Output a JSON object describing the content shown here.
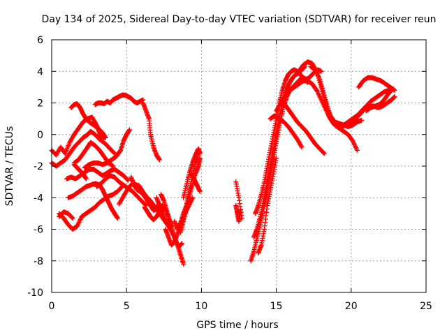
{
  "chart_data": {
    "type": "scatter",
    "title": "Day 134 of 2025, Sidereal Day-to-day VTEC variation (SDTVAR) for receiver reun",
    "xlabel": "GPS time / hours",
    "ylabel": "SDTVAR / TECUs",
    "xlim": [
      0,
      25
    ],
    "ylim": [
      -10,
      6
    ],
    "xticks": [
      0,
      5,
      10,
      15,
      20,
      25
    ],
    "yticks": [
      -10,
      -8,
      -6,
      -4,
      -2,
      0,
      2,
      4,
      6
    ],
    "grid": true,
    "marker": "plus",
    "color": "#ff0000",
    "series": [
      {
        "x": [
          0.0,
          0.3,
          0.6,
          0.9,
          1.2,
          1.5,
          1.8,
          2.1,
          2.4,
          2.7,
          3.0,
          3.2,
          3.4
        ],
        "y": [
          -1.0,
          -1.3,
          -0.8,
          -1.2,
          -0.5,
          0.0,
          0.4,
          0.8,
          1.0,
          1.1,
          0.6,
          0.1,
          -0.3
        ]
      },
      {
        "x": [
          1.3,
          1.5,
          1.7,
          1.9,
          2.1,
          2.3,
          2.5,
          2.8,
          3.1,
          3.4,
          3.6
        ],
        "y": [
          1.7,
          1.9,
          1.95,
          1.7,
          1.3,
          1.0,
          0.8,
          0.6,
          0.4,
          0.1,
          -0.2
        ]
      },
      {
        "x": [
          0.0,
          0.3,
          0.6,
          0.9,
          1.2,
          1.5,
          1.8,
          2.1,
          2.4,
          2.6,
          2.9,
          3.2,
          3.6,
          3.9,
          4.2
        ],
        "y": [
          -1.8,
          -2.0,
          -1.8,
          -1.6,
          -1.2,
          -0.8,
          -0.5,
          -0.2,
          0.0,
          0.2,
          0.0,
          -0.3,
          -0.6,
          -0.9,
          -1.2
        ]
      },
      {
        "x": [
          1.5,
          1.8,
          2.1,
          2.4,
          2.6,
          2.9,
          3.2,
          3.5,
          3.8,
          4.1
        ],
        "y": [
          -1.8,
          -1.6,
          -1.2,
          -0.8,
          -0.5,
          -0.7,
          -1.0,
          -1.4,
          -1.8,
          -2.0
        ]
      },
      {
        "x": [
          2.2,
          2.5,
          2.8,
          3.1,
          3.4,
          3.7,
          4.0,
          4.3,
          4.6,
          4.8,
          5.0,
          5.2
        ],
        "y": [
          -2.1,
          -1.9,
          -1.8,
          -1.8,
          -1.9,
          -1.8,
          -1.6,
          -1.4,
          -1.0,
          -0.4,
          0.0,
          0.3
        ]
      },
      {
        "x": [
          1.0,
          1.3,
          1.6,
          1.9,
          2.2,
          2.5,
          2.8,
          3.1,
          3.4,
          3.6,
          3.9,
          4.2,
          4.5,
          4.8,
          5.1
        ],
        "y": [
          -2.8,
          -2.7,
          -2.8,
          -2.6,
          -2.4,
          -2.2,
          -2.2,
          -2.4,
          -2.6,
          -2.5,
          -2.3,
          -2.2,
          -2.4,
          -2.6,
          -2.9
        ]
      },
      {
        "x": [
          1.5,
          1.7,
          1.9,
          2.1,
          2.3
        ],
        "y": [
          -1.9,
          -2.1,
          -2.3,
          -2.5,
          -2.8
        ]
      },
      {
        "x": [
          2.9,
          3.1,
          3.3,
          3.5,
          3.7,
          3.9,
          4.1,
          4.3,
          4.5,
          4.7,
          4.9,
          5.1,
          5.3,
          5.5,
          5.7,
          5.9,
          6.1
        ],
        "y": [
          1.9,
          2.0,
          2.0,
          1.95,
          2.1,
          2.0,
          2.2,
          2.3,
          2.4,
          2.5,
          2.5,
          2.4,
          2.3,
          2.1,
          2.0,
          2.1,
          2.2
        ]
      },
      {
        "x": [
          6.1,
          6.3,
          6.5,
          6.6,
          6.8,
          7.0,
          7.2
        ],
        "y": [
          2.0,
          1.5,
          1.0,
          0.0,
          -0.8,
          -1.3,
          -1.6
        ]
      },
      {
        "x": [
          0.5,
          0.8,
          1.1,
          1.4,
          1.7,
          2.0,
          2.3,
          2.6,
          2.9,
          3.2,
          3.5,
          3.8,
          4.1,
          4.4,
          4.7
        ],
        "y": [
          -5.0,
          -5.3,
          -5.7,
          -6.0,
          -5.8,
          -5.2,
          -5.0,
          -4.8,
          -4.6,
          -4.3,
          -4.1,
          -3.9,
          -3.8,
          -3.6,
          -3.3
        ]
      },
      {
        "x": [
          0.5,
          0.8,
          1.1,
          1.4
        ],
        "y": [
          -5.2,
          -4.9,
          -5.0,
          -5.3
        ]
      },
      {
        "x": [
          1.1,
          1.4,
          1.7,
          2.0,
          2.3,
          2.6,
          2.9,
          3.2,
          3.4,
          3.6,
          3.8,
          4.0,
          4.2,
          4.4
        ],
        "y": [
          -4.0,
          -3.9,
          -3.7,
          -3.5,
          -3.3,
          -3.2,
          -3.1,
          -3.2,
          -3.5,
          -3.9,
          -4.3,
          -4.7,
          -5.0,
          -5.3
        ]
      },
      {
        "x": [
          3.0,
          3.3,
          3.6,
          3.9,
          4.2,
          4.5,
          4.8,
          5.1,
          5.4,
          5.7,
          6.0,
          6.3
        ],
        "y": [
          -3.3,
          -3.1,
          -2.8,
          -2.6,
          -2.7,
          -3.0,
          -3.2,
          -3.4,
          -3.6,
          -3.9,
          -4.2,
          -4.5
        ]
      },
      {
        "x": [
          4.5,
          4.8,
          5.1,
          5.4,
          5.7,
          6.0,
          6.3,
          6.6,
          6.9,
          7.2,
          7.5,
          7.8
        ],
        "y": [
          -4.4,
          -3.9,
          -3.4,
          -3.1,
          -3.2,
          -3.5,
          -3.9,
          -4.2,
          -4.6,
          -5.0,
          -5.4,
          -5.8
        ]
      },
      {
        "x": [
          5.3,
          5.5,
          5.7,
          5.9,
          6.1,
          6.3,
          6.5,
          6.7,
          6.9
        ],
        "y": [
          -2.7,
          -3.2,
          -3.5,
          -3.6,
          -3.8,
          -4.0,
          -4.2,
          -4.4,
          -4.8
        ]
      },
      {
        "x": [
          5.8,
          6.0,
          6.2,
          6.4,
          6.6,
          6.8,
          7.0,
          7.2,
          7.4
        ],
        "y": [
          -3.2,
          -3.5,
          -3.9,
          -4.2,
          -4.5,
          -4.8,
          -4.6,
          -4.4,
          -4.8
        ]
      },
      {
        "x": [
          6.2,
          6.4,
          6.6,
          6.8,
          7.0,
          7.2,
          7.4,
          7.6,
          7.8,
          8.0
        ],
        "y": [
          -4.6,
          -4.9,
          -5.2,
          -5.4,
          -5.2,
          -4.9,
          -4.5,
          -4.7,
          -5.2,
          -5.8
        ]
      },
      {
        "x": [
          7.0,
          7.2,
          7.4,
          7.6,
          7.8,
          8.0,
          8.2,
          8.4,
          8.6,
          8.8
        ],
        "y": [
          -4.0,
          -4.5,
          -5.0,
          -5.5,
          -5.8,
          -6.1,
          -6.5,
          -7.0,
          -7.6,
          -8.2
        ]
      },
      {
        "x": [
          7.3,
          7.5,
          7.7,
          7.9,
          8.1,
          8.3,
          8.5,
          8.7
        ],
        "y": [
          -3.8,
          -4.2,
          -4.9,
          -5.6,
          -6.2,
          -6.8,
          -7.1,
          -6.9
        ]
      },
      {
        "x": [
          7.6,
          7.8,
          8.0,
          8.2,
          8.4,
          8.6,
          8.8,
          9.0,
          9.2,
          9.4
        ],
        "y": [
          -6.0,
          -6.5,
          -7.0,
          -6.8,
          -6.3,
          -5.8,
          -5.3,
          -4.8,
          -4.4,
          -4.0
        ]
      },
      {
        "x": [
          8.2,
          8.4,
          8.6,
          8.8,
          9.0,
          9.2,
          9.4,
          9.6,
          9.8,
          9.9
        ],
        "y": [
          -5.5,
          -6.0,
          -5.6,
          -5.0,
          -4.5,
          -3.8,
          -3.2,
          -2.5,
          -2.0,
          -1.5
        ]
      },
      {
        "x": [
          8.6,
          8.8,
          9.0,
          9.2,
          9.4,
          9.6,
          9.8
        ],
        "y": [
          -6.2,
          -5.5,
          -4.5,
          -3.5,
          -2.6,
          -1.8,
          -1.2
        ]
      },
      {
        "x": [
          8.8,
          9.0,
          9.2,
          9.4,
          9.6,
          9.8,
          9.9
        ],
        "y": [
          -4.0,
          -3.2,
          -2.4,
          -1.8,
          -1.3,
          -0.9,
          -1.2
        ]
      },
      {
        "x": [
          9.3,
          9.5,
          9.7,
          9.9
        ],
        "y": [
          -2.5,
          -2.8,
          -3.2,
          -3.6
        ]
      },
      {
        "x": [
          12.3,
          12.5,
          12.7
        ],
        "y": [
          -3.0,
          -4.0,
          -5.3
        ]
      },
      {
        "x": [
          12.3,
          12.4,
          12.5,
          12.6
        ],
        "y": [
          -4.5,
          -5.0,
          -5.5,
          -4.8
        ]
      },
      {
        "x": [
          13.3,
          13.5,
          13.7,
          13.9,
          14.1,
          14.3,
          14.5,
          14.7,
          14.9,
          15.1,
          15.3,
          15.5,
          15.7,
          15.9,
          16.1,
          16.3,
          16.5,
          16.7,
          16.9,
          17.1
        ],
        "y": [
          -8.0,
          -7.4,
          -6.6,
          -5.8,
          -5.0,
          -4.0,
          -3.0,
          -2.0,
          -1.0,
          0.0,
          1.0,
          1.8,
          2.4,
          2.8,
          3.0,
          3.2,
          3.4,
          3.6,
          3.5,
          3.3
        ]
      },
      {
        "x": [
          13.5,
          13.7,
          13.9,
          14.1,
          14.3,
          14.5,
          14.7,
          14.9,
          15.1,
          15.3,
          15.5,
          15.7,
          15.9,
          16.1,
          16.3,
          16.5,
          16.7,
          16.9
        ],
        "y": [
          -6.5,
          -6.0,
          -5.3,
          -4.5,
          -3.5,
          -2.5,
          -1.5,
          -0.5,
          0.5,
          1.5,
          2.3,
          2.9,
          3.3,
          3.6,
          3.8,
          3.9,
          4.1,
          4.3
        ]
      },
      {
        "x": [
          13.6,
          13.8,
          14.0,
          14.2,
          14.4,
          14.6,
          14.8,
          15.0,
          15.2,
          15.4,
          15.6,
          15.8,
          16.0,
          16.2,
          16.4,
          16.6,
          16.8,
          17.0,
          17.2,
          17.4,
          17.6,
          17.8,
          18.0
        ],
        "y": [
          -5.0,
          -4.5,
          -3.8,
          -3.0,
          -2.0,
          -1.0,
          0.0,
          1.0,
          2.0,
          2.8,
          3.4,
          3.8,
          4.0,
          4.1,
          4.0,
          3.8,
          3.6,
          3.5,
          3.6,
          3.8,
          4.0,
          4.1,
          4.0
        ]
      },
      {
        "x": [
          13.8,
          14.0,
          14.2,
          14.4,
          14.6,
          14.8,
          15.0
        ],
        "y": [
          -7.5,
          -7.0,
          -6.0,
          -4.5,
          -3.5,
          -2.5,
          -1.5
        ]
      },
      {
        "x": [
          15.0,
          15.3,
          15.6,
          15.9,
          16.2,
          16.5,
          16.8,
          17.1,
          17.4,
          17.7,
          18.0,
          18.3,
          18.6,
          18.9,
          19.2,
          19.5,
          19.8,
          20.1,
          20.4
        ],
        "y": [
          1.5,
          2.0,
          2.4,
          2.8,
          3.0,
          3.2,
          3.4,
          3.4,
          3.2,
          2.8,
          2.2,
          1.6,
          1.0,
          0.6,
          0.4,
          0.2,
          0.0,
          -0.4,
          -1.0
        ]
      },
      {
        "x": [
          15.5,
          15.8,
          16.1,
          16.4,
          16.7,
          17.0,
          17.3,
          17.6,
          17.9,
          18.2
        ],
        "y": [
          2.0,
          1.6,
          1.2,
          0.8,
          0.5,
          0.2,
          -0.2,
          -0.6,
          -0.9,
          -1.2
        ]
      },
      {
        "x": [
          14.6,
          14.9,
          15.2,
          15.5,
          15.8,
          16.1,
          16.4,
          16.7
        ],
        "y": [
          1.0,
          1.2,
          1.0,
          0.8,
          0.5,
          0.1,
          -0.3,
          -0.8
        ]
      },
      {
        "x": [
          16.5,
          16.8,
          17.1,
          17.4,
          17.7,
          18.0,
          18.3,
          18.6,
          18.9,
          19.2,
          19.5,
          19.8,
          20.1,
          20.4,
          20.7
        ],
        "y": [
          4.0,
          4.4,
          4.6,
          4.5,
          4.0,
          3.0,
          2.0,
          1.2,
          0.8,
          0.7,
          0.6,
          0.5,
          0.6,
          0.8,
          0.9
        ]
      },
      {
        "x": [
          17.3,
          17.6,
          17.9,
          18.2,
          18.5,
          18.8
        ],
        "y": [
          4.3,
          4.1,
          3.5,
          2.5,
          1.5,
          0.7
        ]
      },
      {
        "x": [
          18.5,
          18.8,
          19.1,
          19.4,
          19.7,
          20.0,
          20.3,
          20.6,
          20.9,
          21.2,
          21.5,
          21.8,
          22.1,
          22.4,
          22.7,
          22.9
        ],
        "y": [
          1.2,
          0.8,
          0.6,
          0.5,
          0.6,
          0.8,
          1.0,
          1.3,
          1.6,
          1.8,
          1.8,
          1.7,
          1.8,
          2.0,
          2.2,
          2.4
        ]
      },
      {
        "x": [
          19.5,
          19.8,
          20.1,
          20.4,
          20.7,
          21.0,
          21.3,
          21.6,
          21.9,
          22.2,
          22.5,
          22.8
        ],
        "y": [
          0.6,
          0.8,
          1.0,
          1.2,
          1.5,
          1.8,
          2.1,
          2.3,
          2.5,
          2.7,
          2.8,
          2.9
        ]
      },
      {
        "x": [
          20.5,
          20.8,
          21.1,
          21.4,
          21.7,
          22.0,
          22.3,
          22.6,
          22.9
        ],
        "y": [
          3.0,
          3.4,
          3.6,
          3.6,
          3.5,
          3.4,
          3.2,
          3.0,
          2.8
        ]
      },
      {
        "x": [
          21.0,
          21.3,
          21.6,
          21.9,
          22.2,
          22.5,
          22.8
        ],
        "y": [
          1.5,
          1.7,
          1.8,
          1.9,
          2.2,
          2.6,
          2.9
        ]
      }
    ]
  }
}
